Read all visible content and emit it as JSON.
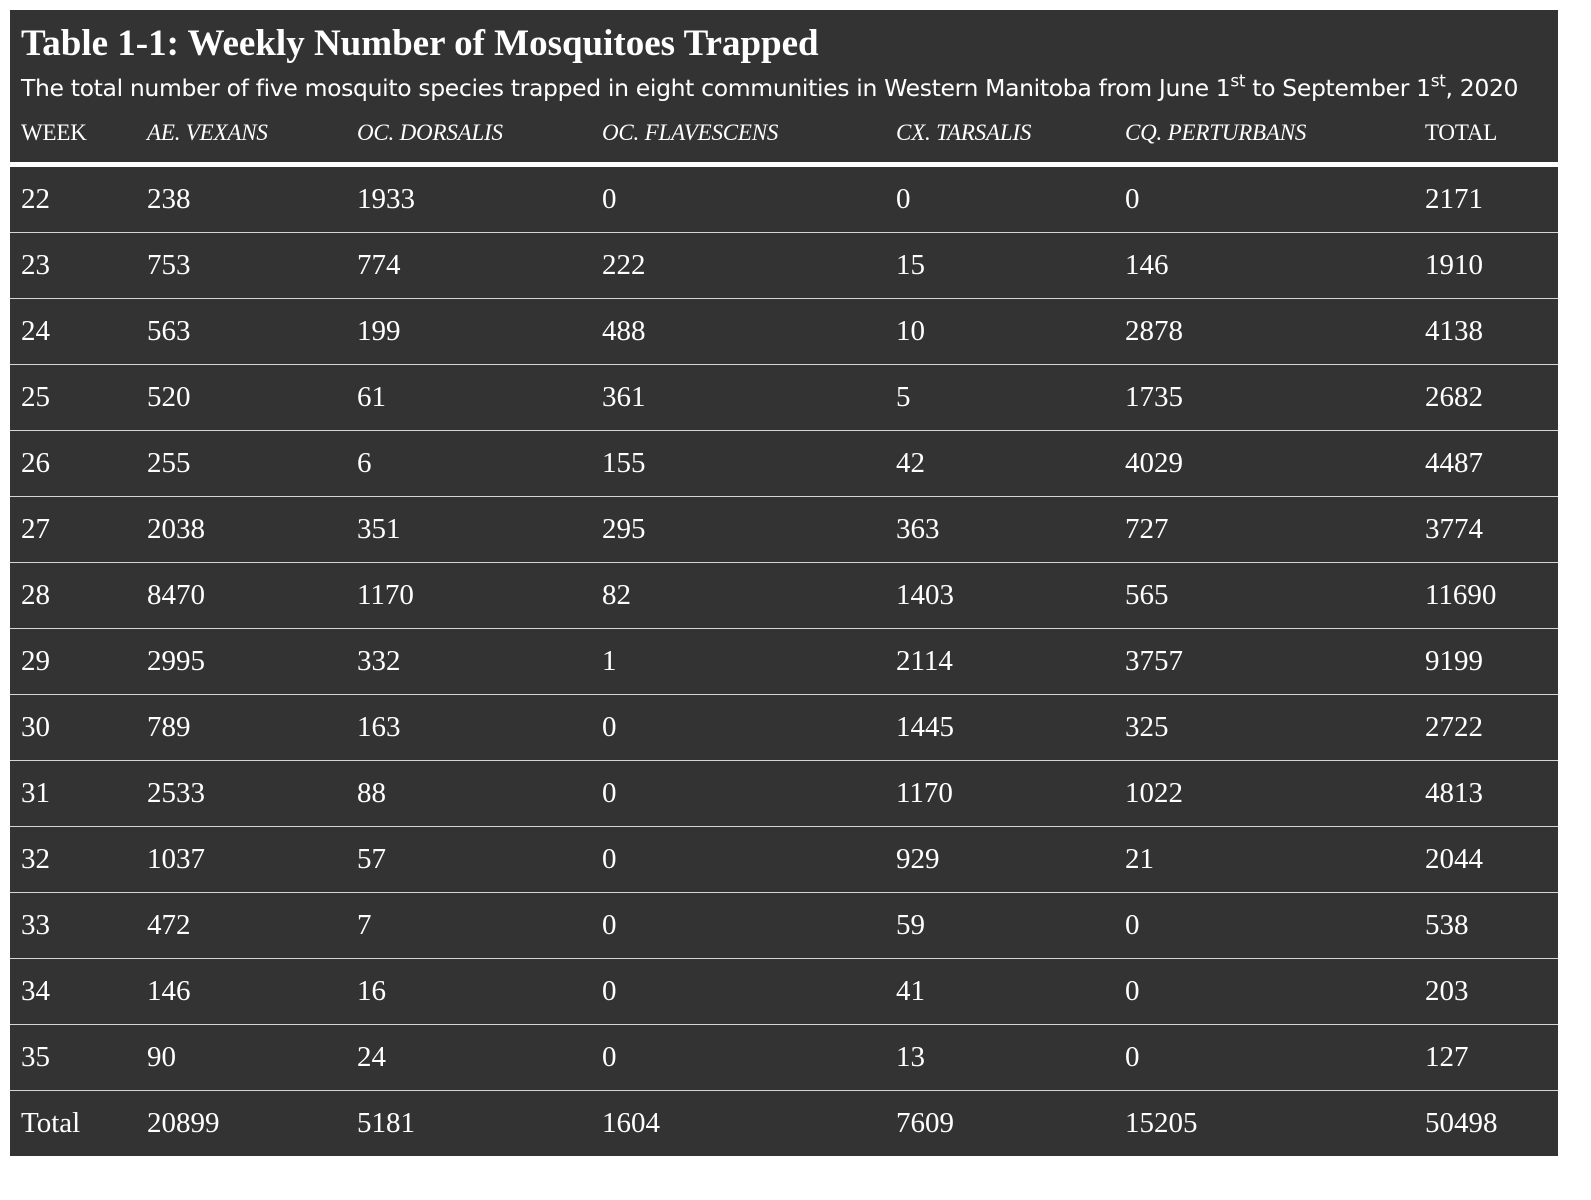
{
  "title": "Table 1-1: Weekly Number of Mosquitoes Trapped",
  "subtitle": {
    "part1": "The total number of five mosquito species trapped in eight communities in Western Manitoba from June 1",
    "sup1": "st",
    "part2": " to September 1",
    "sup2": "st",
    "part3": ", 2020"
  },
  "columns": [
    "WEEK",
    "AE. VEXANS",
    "OC. DORSALIS",
    "OC. FLAVESCENS",
    "CX. TARSALIS",
    "CQ. PERTURBANS",
    "TOTAL"
  ],
  "rows": [
    [
      "22",
      "238",
      "1933",
      "0",
      "0",
      "0",
      "2171"
    ],
    [
      "23",
      "753",
      "774",
      "222",
      "15",
      "146",
      "1910"
    ],
    [
      "24",
      "563",
      "199",
      "488",
      "10",
      "2878",
      "4138"
    ],
    [
      "25",
      "520",
      "61",
      "361",
      "5",
      "1735",
      "2682"
    ],
    [
      "26",
      "255",
      "6",
      "155",
      "42",
      "4029",
      "4487"
    ],
    [
      "27",
      "2038",
      "351",
      "295",
      "363",
      "727",
      "3774"
    ],
    [
      "28",
      "8470",
      "1170",
      "82",
      "1403",
      "565",
      "11690"
    ],
    [
      "29",
      "2995",
      "332",
      "1",
      "2114",
      "3757",
      "9199"
    ],
    [
      "30",
      "789",
      "163",
      "0",
      "1445",
      "325",
      "2722"
    ],
    [
      "31",
      "2533",
      "88",
      "0",
      "1170",
      "1022",
      "4813"
    ],
    [
      "32",
      "1037",
      "57",
      "0",
      "929",
      "21",
      "2044"
    ],
    [
      "33",
      "472",
      "7",
      "0",
      "59",
      "0",
      "538"
    ],
    [
      "34",
      "146",
      "16",
      "0",
      "41",
      "0",
      "203"
    ],
    [
      "35",
      "90",
      "24",
      "0",
      "13",
      "0",
      "127"
    ],
    [
      "Total",
      "20899",
      "5181",
      "1604",
      "7609",
      "15205",
      "50498"
    ]
  ],
  "colors": {
    "background": "#333333",
    "text": "#ffffff",
    "row_divider": "#d6d6d6"
  }
}
